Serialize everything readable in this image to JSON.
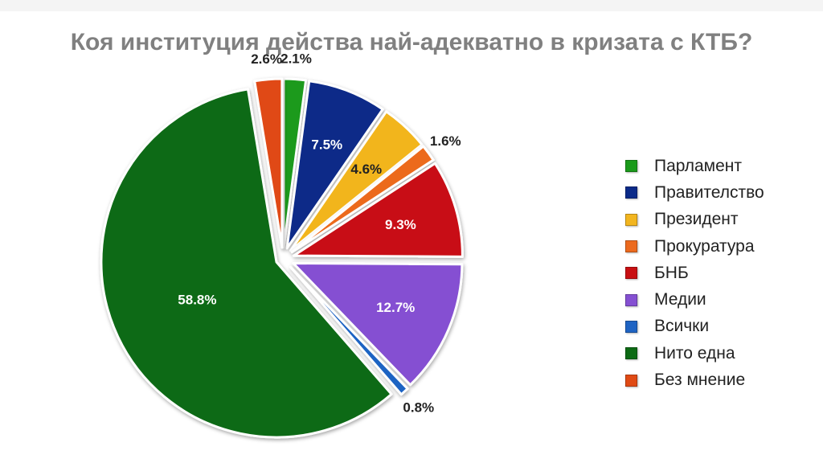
{
  "chart_data": {
    "type": "pie",
    "title": "Коя институция действа най-адекватно в кризата с КТБ?",
    "legend_position": "right",
    "slices": [
      {
        "label": "Парламент",
        "value": 2.1,
        "value_label": "2.1%",
        "color": "#1a9a1a"
      },
      {
        "label": "Правителство",
        "value": 7.5,
        "value_label": "7.5%",
        "color": "#0b2a88"
      },
      {
        "label": "Президент",
        "value": 4.6,
        "value_label": "4.6%",
        "color": "#f2b51f"
      },
      {
        "label": "Прокуратура",
        "value": 1.6,
        "value_label": "1.6%",
        "color": "#ec6a1e"
      },
      {
        "label": "БНБ",
        "value": 9.3,
        "value_label": "9.3%",
        "color": "#c80f12"
      },
      {
        "label": "Медии",
        "value": 12.7,
        "value_label": "12.7%",
        "color": "#8550d2"
      },
      {
        "label": "Всички",
        "value": 0.8,
        "value_label": "0.8%",
        "color": "#1f64c3"
      },
      {
        "label": "Нито една",
        "value": 58.8,
        "value_label": "58.8%",
        "color": "#0d6a14"
      },
      {
        "label": "Без мнение",
        "value": 2.6,
        "value_label": "2.6%",
        "color": "#e04a14"
      }
    ]
  }
}
